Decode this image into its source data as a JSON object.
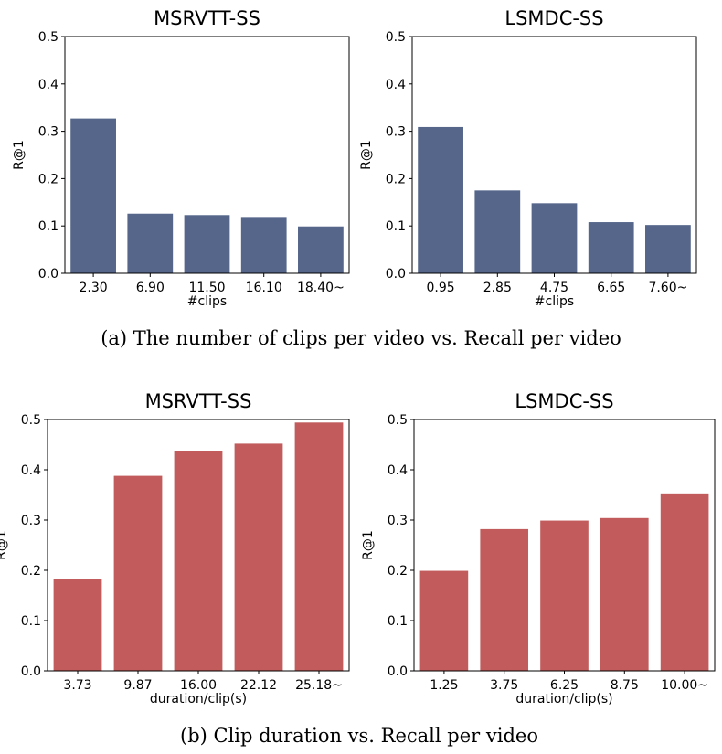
{
  "chart_data": [
    {
      "type": "bar",
      "title": "MSRVTT-SS",
      "categories": [
        "2.30",
        "6.90",
        "11.50",
        "16.10",
        "18.40~"
      ],
      "values": [
        0.327,
        0.126,
        0.123,
        0.119,
        0.099
      ],
      "xlabel": "#clips",
      "ylabel": "R@1",
      "ylim": [
        0,
        0.5
      ],
      "yticks": [
        "0.0",
        "0.1",
        "0.2",
        "0.3",
        "0.4",
        "0.5"
      ],
      "color": "#55668a",
      "grid": false
    },
    {
      "type": "bar",
      "title": "LSMDC-SS",
      "categories": [
        "0.95",
        "2.85",
        "4.75",
        "6.65",
        "7.60~"
      ],
      "values": [
        0.309,
        0.175,
        0.148,
        0.108,
        0.102
      ],
      "xlabel": "#clips",
      "ylabel": "R@1",
      "ylim": [
        0,
        0.5
      ],
      "yticks": [
        "0.0",
        "0.1",
        "0.2",
        "0.3",
        "0.4",
        "0.5"
      ],
      "color": "#55668a",
      "grid": false
    },
    {
      "type": "bar",
      "title": "MSRVTT-SS",
      "categories": [
        "3.73",
        "9.87",
        "16.00",
        "22.12",
        "25.18~"
      ],
      "values": [
        0.182,
        0.388,
        0.438,
        0.452,
        0.494
      ],
      "xlabel": "duration/clip(s)",
      "ylabel": "R@1",
      "ylim": [
        0,
        0.5
      ],
      "yticks": [
        "0.0",
        "0.1",
        "0.2",
        "0.3",
        "0.4",
        "0.5"
      ],
      "color": "#c25c5c",
      "grid": false
    },
    {
      "type": "bar",
      "title": "LSMDC-SS",
      "categories": [
        "1.25",
        "3.75",
        "6.25",
        "8.75",
        "10.00~"
      ],
      "values": [
        0.199,
        0.282,
        0.299,
        0.304,
        0.353
      ],
      "xlabel": "duration/clip(s)",
      "ylabel": "R@1",
      "ylim": [
        0,
        0.5
      ],
      "yticks": [
        "0.0",
        "0.1",
        "0.2",
        "0.3",
        "0.4",
        "0.5"
      ],
      "color": "#c25c5c",
      "grid": false
    }
  ],
  "captions": [
    "(a) The number of clips per video vs. Recall per video",
    "(b) Clip duration vs. Recall per video"
  ]
}
